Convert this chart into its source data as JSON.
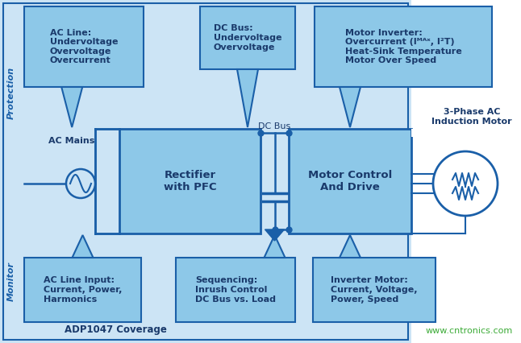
{
  "bg_color": "#cce4f5",
  "block_fill": "#8dc8e8",
  "block_edge": "#1a5fa8",
  "dark_blue": "#1a5fa8",
  "text_dark": "#1a3a6b",
  "green_text": "#3aaa35",
  "title": "ADP1047 Coverage",
  "watermark": "www.cntronics.com",
  "protection_label": "Protection",
  "monitor_label": "Monitor",
  "ac_mains_label": "AC Mains",
  "dc_bus_label": "DC Bus",
  "rectifier_label": "Rectifier\nwith PFC",
  "motor_control_label": "Motor Control\nAnd Drive",
  "motor_label": "3-Phase AC\nInduction Motor",
  "box1_text": "AC Line:\nUndervoltage\nOvervoltage\nOvercurrent",
  "box2_text": "DC Bus:\nUndervoltage\nOvervoltage",
  "box3_text": "Motor Inverter:\nOvercurrent (Iᴹᴬˣ, I²T)\nHeat-Sink Temperature\nMotor Over Speed",
  "box4_text": "AC Line Input:\nCurrent, Power,\nHarmonics",
  "box5_text": "Sequencing:\nInrush Control\nDC Bus vs. Load",
  "box6_text": "Inverter Motor:\nCurrent, Voltage,\nPower, Speed"
}
